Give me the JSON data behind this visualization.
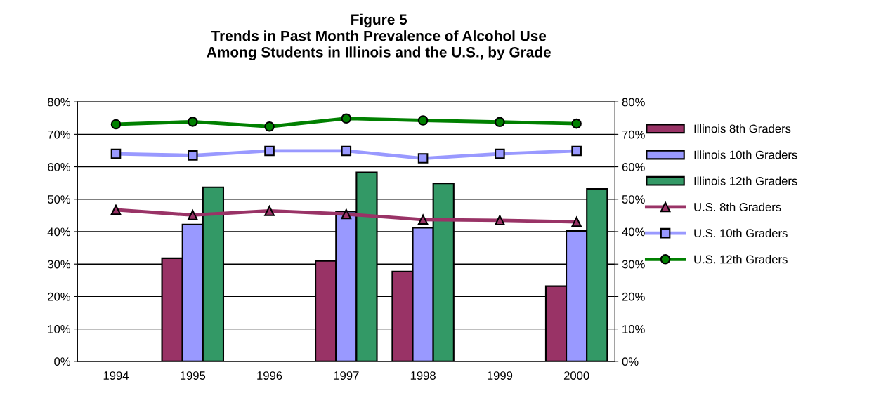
{
  "chart_data": {
    "type": "bar",
    "title": "Figure 5\nTrends in Past Month Prevalence of Alcohol Use\nAmong Students in Illinois and the U.S., by Grade",
    "categories": [
      "1994",
      "1995",
      "1996",
      "1997",
      "1998",
      "1999",
      "2000"
    ],
    "series": [
      {
        "name": "Illinois 8th Graders",
        "color": "#993366",
        "values": [
          null,
          31.8,
          null,
          31.0,
          27.7,
          null,
          23.2
        ]
      },
      {
        "name": "Illinois 10th Graders",
        "color": "#9999ff",
        "values": [
          null,
          42.2,
          null,
          46.2,
          41.2,
          null,
          40.2
        ]
      },
      {
        "name": "Illinois 12th Graders",
        "color": "#339966",
        "values": [
          null,
          53.7,
          null,
          58.3,
          54.9,
          null,
          53.2
        ]
      },
      {
        "name": "U.S. 8th Graders",
        "type": "line",
        "marker": "triangle",
        "color": "#993366",
        "values": [
          46.7,
          45.1,
          46.4,
          45.4,
          43.7,
          43.5,
          43.0
        ]
      },
      {
        "name": "U.S. 10th Graders",
        "type": "line",
        "marker": "square",
        "color": "#9999ff",
        "values": [
          64.0,
          63.5,
          64.9,
          64.9,
          62.6,
          64.0,
          64.9
        ]
      },
      {
        "name": "U.S. 12th Graders",
        "type": "line",
        "marker": "circle",
        "color": "#008000",
        "values": [
          73.1,
          73.9,
          72.4,
          74.9,
          74.3,
          73.8,
          73.3
        ]
      }
    ],
    "ylim": [
      0,
      80
    ],
    "yticks": [
      {
        "value": 0,
        "label": "0%"
      },
      {
        "value": 10,
        "label": "10%"
      },
      {
        "value": 20,
        "label": "20%"
      },
      {
        "value": 30,
        "label": "30%"
      },
      {
        "value": 40,
        "label": "40%"
      },
      {
        "value": 50,
        "label": "50%"
      },
      {
        "value": 60,
        "label": "60%"
      },
      {
        "value": 70,
        "label": "70%"
      },
      {
        "value": 80,
        "label": "80%"
      }
    ],
    "y2lim": [
      0,
      80
    ],
    "y2ticks": [
      {
        "value": 0,
        "label": "0%"
      },
      {
        "value": 10,
        "label": "10%"
      },
      {
        "value": 20,
        "label": "20%"
      },
      {
        "value": 30,
        "label": "30%"
      },
      {
        "value": 40,
        "label": "40%"
      },
      {
        "value": 50,
        "label": "50%"
      },
      {
        "value": 60,
        "label": "60%"
      },
      {
        "value": 70,
        "label": "70%"
      },
      {
        "value": 80,
        "label": "80%"
      }
    ],
    "grid": "y",
    "legend": "right"
  }
}
